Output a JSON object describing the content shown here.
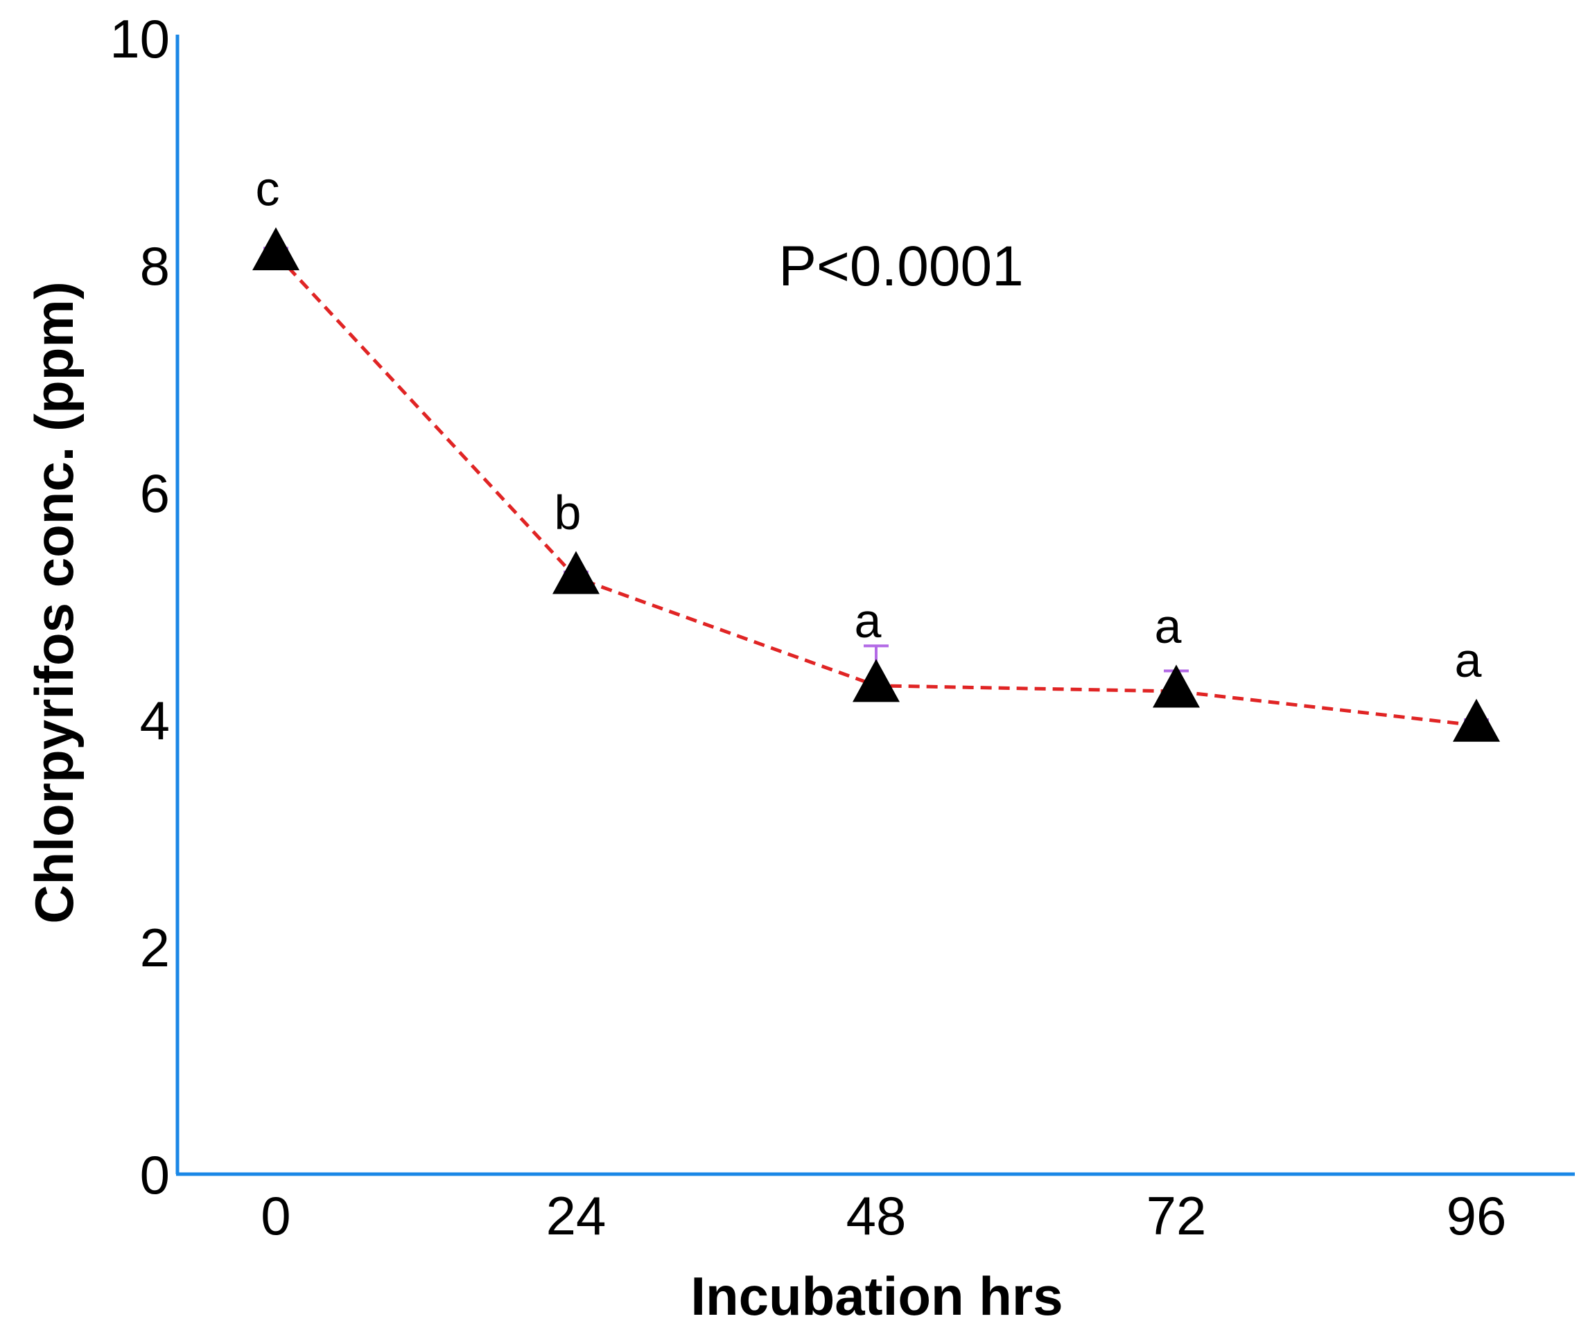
{
  "chart_data": {
    "type": "line",
    "title": "",
    "xlabel": "Incubation hrs",
    "ylabel": "Chlorpyrifos conc. (ppm)",
    "categories": [
      "0",
      "24",
      "48",
      "72",
      "96"
    ],
    "x": [
      0,
      24,
      48,
      72,
      96
    ],
    "ylim": [
      0,
      10
    ],
    "yticks": [
      0,
      2,
      4,
      6,
      8,
      10
    ],
    "grid": false,
    "series": [
      {
        "name": "Chlorpyrifos",
        "values": [
          8.1,
          5.25,
          4.3,
          4.25,
          3.95
        ],
        "error_upper": [
          0.05,
          0.05,
          0.35,
          0.18,
          0.05
        ],
        "significance_letters": [
          "c",
          "b",
          "a",
          "a",
          "a"
        ],
        "marker": "triangle",
        "line_style": "dashed"
      }
    ],
    "annotations": [
      {
        "text": "P<0.0001"
      }
    ],
    "colors": {
      "axis": "#1a87e6",
      "line": "#e02424",
      "marker": "#000000",
      "error_bar": "#b36ae6"
    }
  }
}
